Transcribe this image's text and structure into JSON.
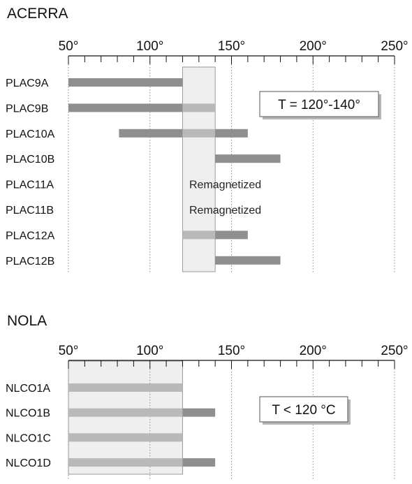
{
  "chart_data": [
    {
      "type": "bar",
      "title": "ACERRA",
      "xlim": [
        50,
        250
      ],
      "xticks": [
        {
          "value": 50,
          "label": "50°"
        },
        {
          "value": 100,
          "label": "100°"
        },
        {
          "value": 150,
          "label": "150°"
        },
        {
          "value": 200,
          "label": "200°"
        },
        {
          "value": 250,
          "label": "250°"
        }
      ],
      "grid": "vertical dotted",
      "highlight_band": {
        "from": 120,
        "to": 140,
        "label": "T = 120°-140°"
      },
      "categories": [
        "PLAC9A",
        "PLAC9B",
        "PLAC10A",
        "PLAC10B",
        "PLAC11A",
        "PLAC11B",
        "PLAC12A",
        "PLAC12B"
      ],
      "ranges": [
        {
          "sample": "PLAC9A",
          "from": 50,
          "to": 120
        },
        {
          "sample": "PLAC9B",
          "from": 50,
          "to": 140
        },
        {
          "sample": "PLAC10A",
          "from": 81,
          "to": 160
        },
        {
          "sample": "PLAC10B",
          "from": 140,
          "to": 180
        },
        {
          "sample": "PLAC11A",
          "note": "Remagnetized"
        },
        {
          "sample": "PLAC11B",
          "note": "Remagnetized"
        },
        {
          "sample": "PLAC12A",
          "from": 120,
          "to": 160
        },
        {
          "sample": "PLAC12B",
          "from": 140,
          "to": 180
        }
      ]
    },
    {
      "type": "bar",
      "title": "NOLA",
      "xlim": [
        50,
        250
      ],
      "xticks": [
        {
          "value": 50,
          "label": "50°"
        },
        {
          "value": 100,
          "label": "100°"
        },
        {
          "value": 150,
          "label": "150°"
        },
        {
          "value": 200,
          "label": "200°"
        },
        {
          "value": 250,
          "label": "250°"
        }
      ],
      "grid": "vertical dotted",
      "highlight_band": {
        "from": 50,
        "to": 120,
        "label": "T < 120 °C"
      },
      "categories": [
        "NLCO1A",
        "NLCO1B",
        "NLCO1C",
        "NLCO1D"
      ],
      "ranges": [
        {
          "sample": "NLCO1A",
          "from": 50,
          "to": 120
        },
        {
          "sample": "NLCO1B",
          "from": 50,
          "to": 140
        },
        {
          "sample": "NLCO1C",
          "from": 50,
          "to": 120
        },
        {
          "sample": "NLCO1D",
          "from": 50,
          "to": 140
        }
      ]
    }
  ],
  "colors": {
    "bar": "#8f8f8f",
    "bar_in_band": "#b9b9b9",
    "band_fill": "#efefef",
    "band_stroke": "#9a9a9a",
    "grid": "#8a8a8a",
    "box_shadow": "#b5b5b5"
  }
}
